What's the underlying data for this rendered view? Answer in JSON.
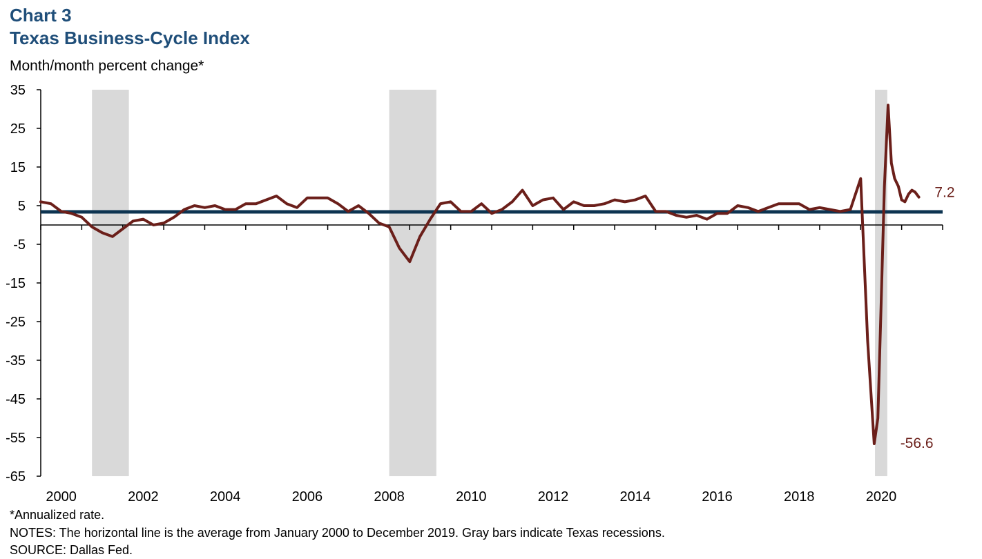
{
  "header": {
    "chart_number": "Chart 3",
    "title": "Texas Business-Cycle Index",
    "ylabel": "Month/month percent change*"
  },
  "footer": {
    "footnote": "*Annualized rate.",
    "notes": "NOTES: The horizontal line is the average from January 2000 to December 2019. Gray bars indicate Texas recessions.",
    "source": "SOURCE: Dallas Fed."
  },
  "colors": {
    "series": "#6b1f1a",
    "average": "#0d3451",
    "recession": "#d9d9d9",
    "title": "#1f4e79"
  },
  "chart_data": {
    "type": "line",
    "title": "Texas Business-Cycle Index",
    "ylabel": "Month/month percent change*",
    "xlabel": "",
    "ylim": [
      -65,
      35
    ],
    "y_ticks": [
      35,
      25,
      15,
      5,
      -5,
      -15,
      -25,
      -35,
      -45,
      -55,
      -65
    ],
    "x_tick_labels": [
      "2000",
      "2002",
      "2004",
      "2006",
      "2008",
      "2010",
      "2012",
      "2014",
      "2016",
      "2018",
      "2020"
    ],
    "xlim": [
      1999.5,
      2021.5
    ],
    "grid": false,
    "legend": "none",
    "average_line": 3.4,
    "recessions": [
      [
        2000.75,
        2001.65
      ],
      [
        2008.0,
        2009.15
      ],
      [
        2019.85,
        2020.15
      ]
    ],
    "annotations": [
      {
        "text": "7.2",
        "x": 2021.0,
        "y": 7.2
      },
      {
        "text": "-56.6",
        "x": 2020.4,
        "y": -56.6
      }
    ],
    "series": [
      {
        "x": [
          1999.5,
          1999.75,
          2000.0,
          2000.25,
          2000.5,
          2000.75,
          2001.0,
          2001.25,
          2001.5,
          2001.75,
          2002.0,
          2002.25,
          2002.5,
          2002.75,
          2003.0,
          2003.25,
          2003.5,
          2003.75,
          2004.0,
          2004.25,
          2004.5,
          2004.75,
          2005.0,
          2005.25,
          2005.5,
          2005.75,
          2006.0,
          2006.25,
          2006.5,
          2006.75,
          2007.0,
          2007.25,
          2007.5,
          2007.75,
          2008.0,
          2008.25,
          2008.5,
          2008.75,
          2009.0,
          2009.25,
          2009.5,
          2009.75,
          2010.0,
          2010.25,
          2010.5,
          2010.75,
          2011.0,
          2011.25,
          2011.5,
          2011.75,
          2012.0,
          2012.25,
          2012.5,
          2012.75,
          2013.0,
          2013.25,
          2013.5,
          2013.75,
          2014.0,
          2014.25,
          2014.5,
          2014.75,
          2015.0,
          2015.25,
          2015.5,
          2015.75,
          2016.0,
          2016.25,
          2016.5,
          2016.75,
          2017.0,
          2017.25,
          2017.5,
          2017.75,
          2018.0,
          2018.25,
          2018.5,
          2018.75,
          2019.0,
          2019.25,
          2019.5,
          2019.67,
          2019.83,
          2019.92,
          2020.0,
          2020.08,
          2020.17,
          2020.25,
          2020.33,
          2020.42,
          2020.5,
          2020.58,
          2020.67,
          2020.75,
          2020.83,
          2020.92
        ],
        "values": [
          6.0,
          5.5,
          3.5,
          3.0,
          2.0,
          -0.5,
          -2.0,
          -3.0,
          -1.0,
          1.0,
          1.5,
          0.0,
          0.5,
          2.0,
          4.0,
          5.0,
          4.5,
          5.0,
          4.0,
          4.0,
          5.5,
          5.5,
          6.5,
          7.5,
          5.5,
          4.5,
          7.0,
          7.0,
          7.0,
          5.5,
          3.5,
          5.0,
          3.0,
          0.5,
          -0.5,
          -6.0,
          -9.5,
          -3.0,
          1.5,
          5.5,
          6.0,
          3.5,
          3.5,
          5.5,
          3.0,
          4.0,
          6.0,
          9.0,
          5.0,
          6.5,
          7.0,
          4.0,
          6.0,
          5.0,
          5.0,
          5.5,
          6.5,
          6.0,
          6.5,
          7.5,
          3.5,
          3.5,
          2.5,
          2.0,
          2.5,
          1.5,
          3.0,
          3.0,
          5.0,
          4.5,
          3.5,
          4.5,
          5.5,
          5.5,
          5.5,
          4.0,
          4.5,
          4.0,
          3.5,
          4.0,
          12.0,
          -30.0,
          -56.6,
          -50.0,
          -20.0,
          10.0,
          31.0,
          16.0,
          12.0,
          10.0,
          6.5,
          6.0,
          8.0,
          9.0,
          8.5,
          7.2
        ]
      }
    ]
  }
}
